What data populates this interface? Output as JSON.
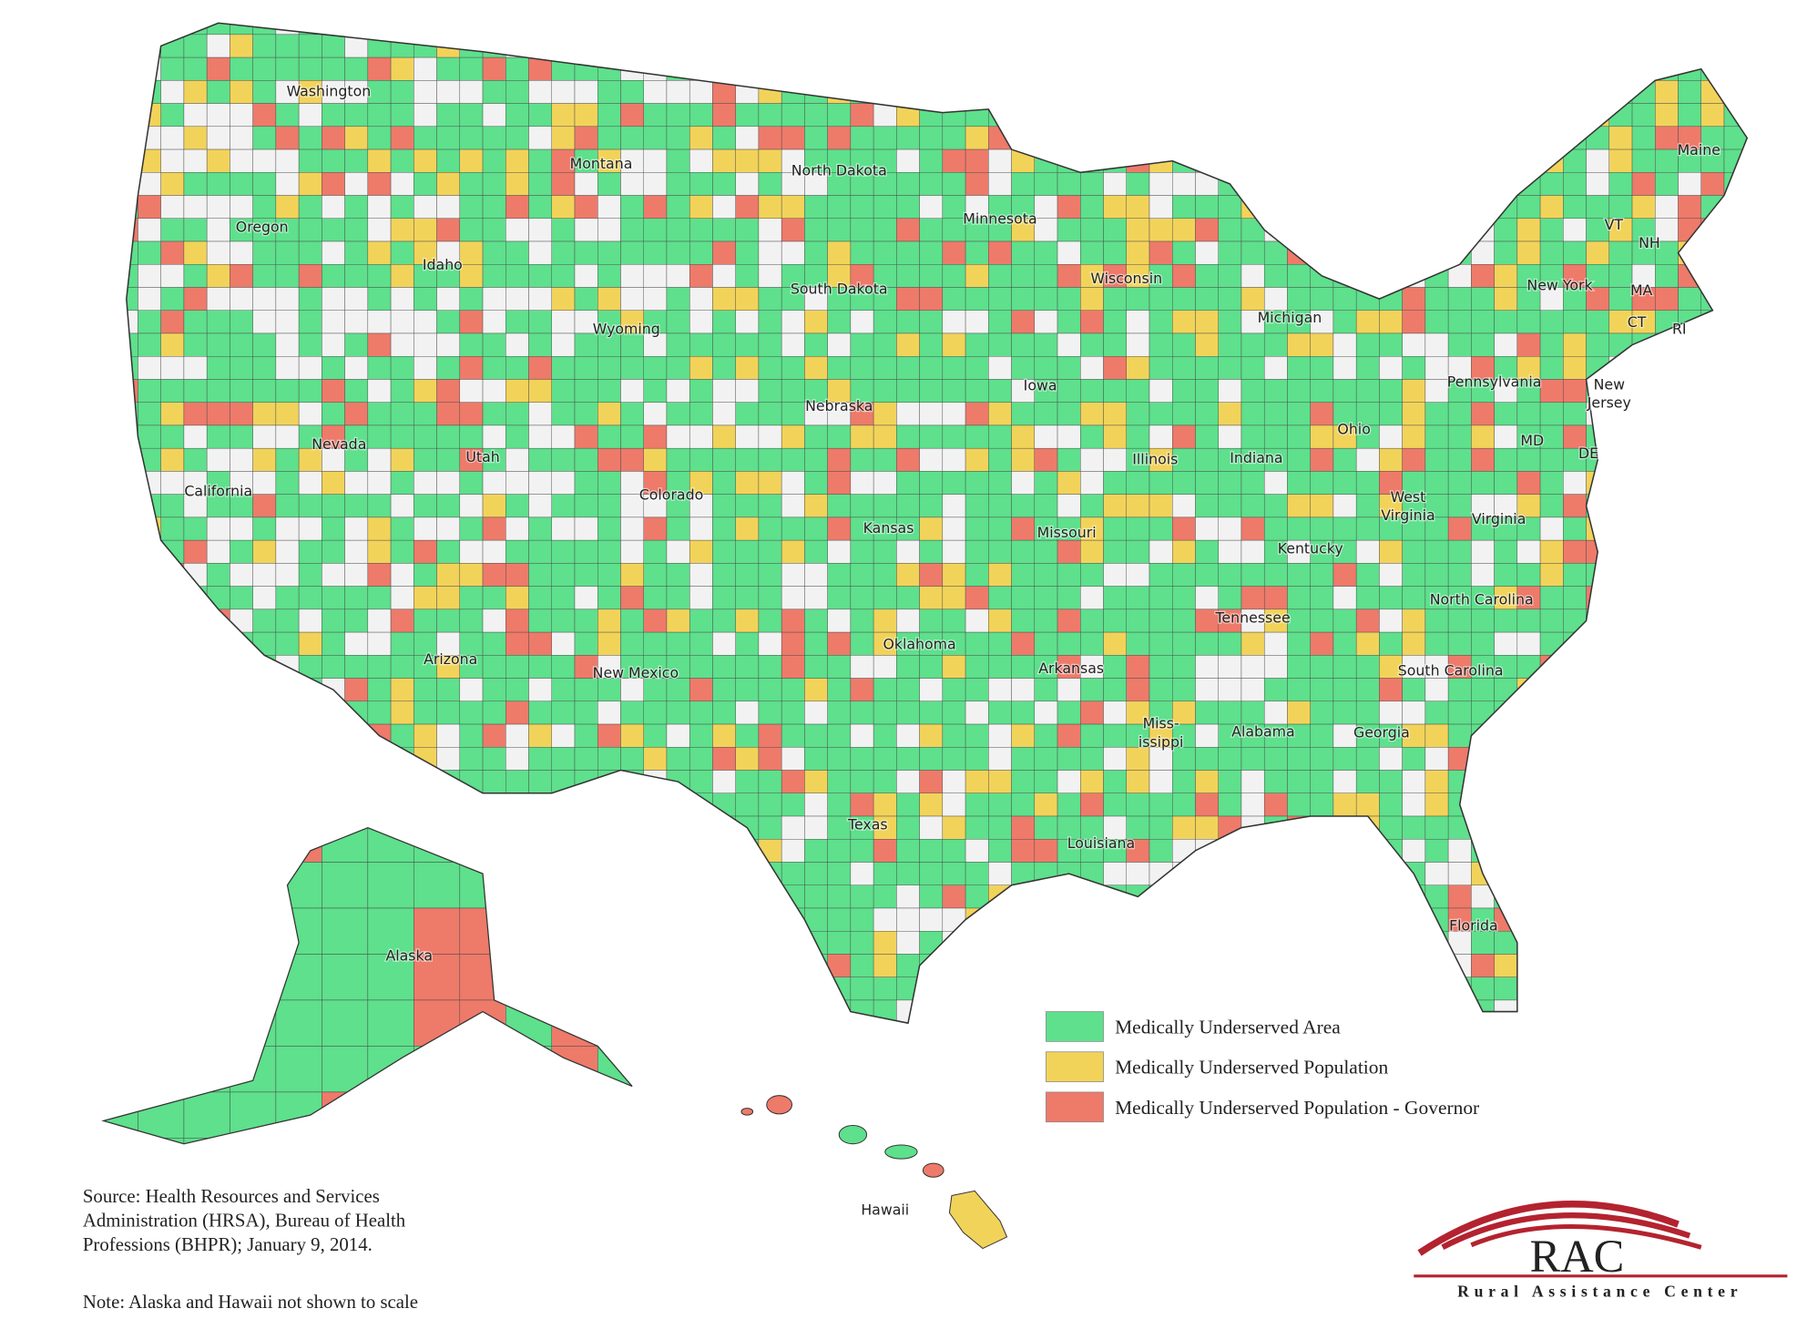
{
  "map": {
    "legend": [
      {
        "label": "Medically Underserved Area",
        "color": "#5ee08c"
      },
      {
        "label": "Medically Underserved Population",
        "color": "#f2d35a"
      },
      {
        "label": "Medically Underserved Population - Governor",
        "color": "#ee7a6a"
      }
    ],
    "state_labels": [
      "Washington",
      "Montana",
      "North Dakota",
      "Minnesota",
      "Oregon",
      "Idaho",
      "Wisconsin",
      "South Dakota",
      "New York",
      "Maine",
      "VT",
      "NH",
      "MA",
      "CT",
      "RI",
      "Michigan",
      "Wyoming",
      "Pennsylvania",
      "Iowa",
      [
        "New",
        "Jersey"
      ],
      "Nebraska",
      "Nevada",
      "Utah",
      "Illinois",
      "Indiana",
      "Ohio",
      "MD",
      "DE",
      "Colorado",
      "California",
      [
        "West",
        "Virginia"
      ],
      "Virginia",
      "Kansas",
      "Missouri",
      "Kentucky",
      "North Carolina",
      "Tennessee",
      "Oklahoma",
      "Arkansas",
      "South Carolina",
      "New Mexico",
      "Arizona",
      [
        "Miss-",
        "issippi"
      ],
      "Alabama",
      "Georgia",
      "Texas",
      "Louisiana",
      "Florida",
      "Alaska",
      "Hawaii"
    ],
    "source": [
      "Source: Health Resources and Services",
      "Administration (HRSA), Bureau of Health",
      "Professions (BHPR); January 9, 2014."
    ],
    "note": "Note: Alaska and Hawaii not shown to scale",
    "logo": {
      "mark": "RAC",
      "name": "Rural Assistance Center"
    }
  }
}
